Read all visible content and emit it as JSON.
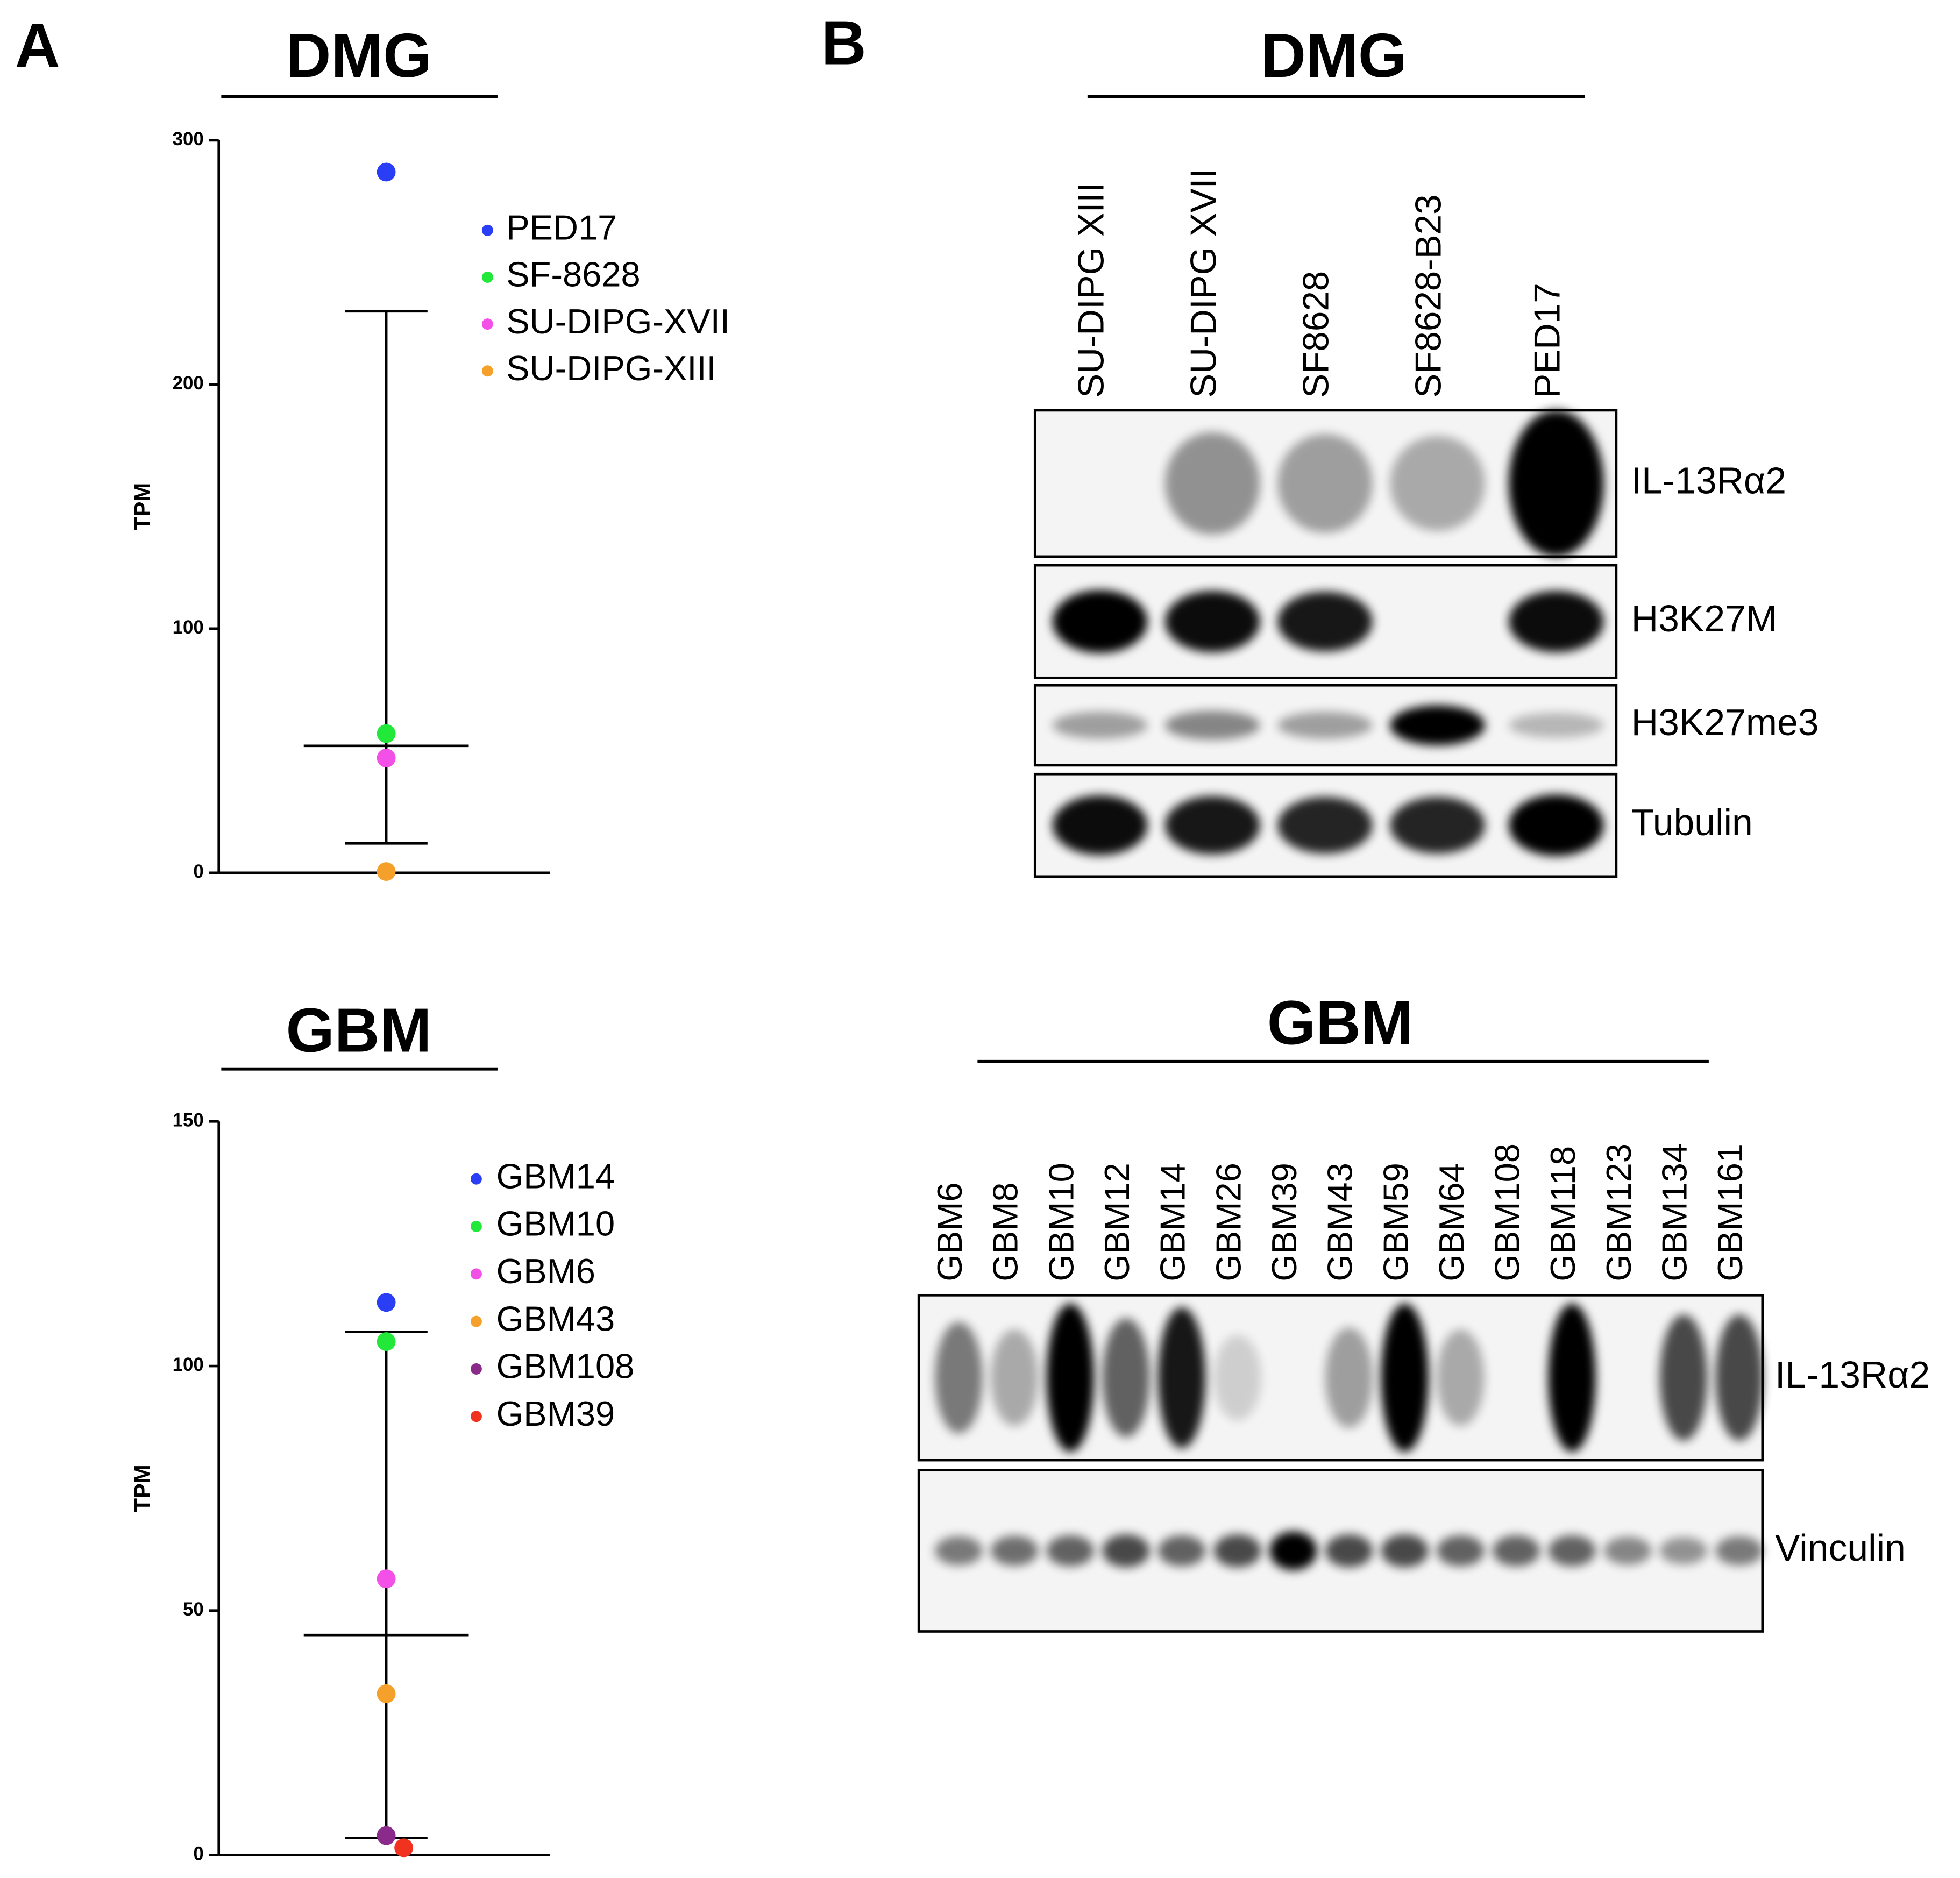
{
  "chart_data": [
    {
      "type": "scatter",
      "title": "DMG",
      "ylabel": "TPM",
      "ylim": [
        0,
        300
      ],
      "yticks": [
        0,
        100,
        200,
        300
      ],
      "series": [
        {
          "name": "PED17",
          "color": "#2a3ff5",
          "values": [
            287
          ]
        },
        {
          "name": "SF-8628",
          "color": "#22e83a",
          "values": [
            57
          ]
        },
        {
          "name": "SU-DIPG-XVII",
          "color": "#f250e6",
          "values": [
            47
          ]
        },
        {
          "name": "SU-DIPG-XIII",
          "color": "#f5a02a",
          "values": [
            0.5
          ]
        }
      ],
      "summary": {
        "mean": 52,
        "upper": 230,
        "lower": 12
      }
    },
    {
      "type": "scatter",
      "title": "GBM",
      "ylabel": "TPM",
      "ylim": [
        0,
        150
      ],
      "yticks": [
        0,
        50,
        100,
        150
      ],
      "series": [
        {
          "name": "GBM14",
          "color": "#2a3ff5",
          "values": [
            113
          ]
        },
        {
          "name": "GBM10",
          "color": "#22e83a",
          "values": [
            105
          ]
        },
        {
          "name": "GBM6",
          "color": "#f250e6",
          "values": [
            56.5
          ]
        },
        {
          "name": "GBM43",
          "color": "#f5a02a",
          "values": [
            33
          ]
        },
        {
          "name": "GBM108",
          "color": "#8a2a8a",
          "values": [
            4
          ]
        },
        {
          "name": "GBM39",
          "color": "#f0321e",
          "values": [
            1.5
          ]
        }
      ],
      "summary": {
        "mean": 45,
        "upper": 107,
        "lower": 3.5
      }
    }
  ],
  "panels": [
    "A",
    "B"
  ],
  "blots": [
    {
      "title": "DMG",
      "lanes": [
        "SU-DIPG XIII",
        "SU-DIPG XVII",
        "SF8628",
        "SF8628-B23",
        "PED17"
      ],
      "rows": [
        "IL-13Rα2",
        "H3K27M",
        "H3K27me3",
        "Tubulin"
      ]
    },
    {
      "title": "GBM",
      "lanes": [
        "GBM6",
        "GBM8",
        "GBM10",
        "GBM12",
        "GBM14",
        "GBM26",
        "GBM39",
        "GBM43",
        "GBM59",
        "GBM64",
        "GBM108",
        "GBM118",
        "GBM123",
        "GBM134",
        "GBM161"
      ],
      "rows": [
        "IL-13Rα2",
        "Vinculin"
      ]
    }
  ]
}
